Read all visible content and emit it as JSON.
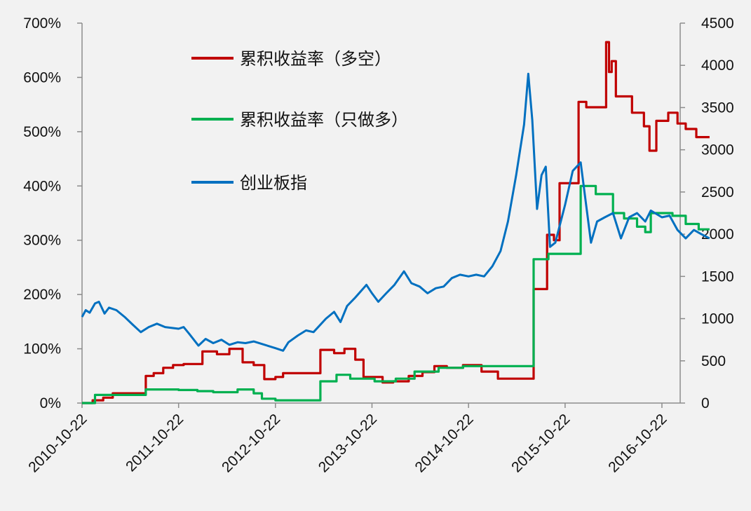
{
  "chart_data": {
    "type": "line",
    "title": "",
    "xlabel": "",
    "ylabel": "",
    "grid": false,
    "legend_placement": "top-left-inside",
    "x_ticks": [
      "2010-10-22",
      "2011-10-22",
      "2012-10-22",
      "2013-10-22",
      "2014-10-22",
      "2015-10-22",
      "2016-10-22"
    ],
    "x_range": [
      "2010-10-22",
      "2017-04-20"
    ],
    "y_left": {
      "ylim": [
        0,
        700
      ],
      "ticks": [
        0,
        100,
        200,
        300,
        400,
        500,
        600,
        700
      ],
      "tick_labels": [
        "0%",
        "100%",
        "200%",
        "300%",
        "400%",
        "500%",
        "600%",
        "700%"
      ]
    },
    "y_right": {
      "ylim": [
        0,
        4500
      ],
      "ticks": [
        0,
        500,
        1000,
        1500,
        2000,
        2500,
        3000,
        3500,
        4000,
        4500
      ],
      "tick_labels": [
        "0",
        "500",
        "1000",
        "1500",
        "2000",
        "2500",
        "3000",
        "3500",
        "4000",
        "4500"
      ]
    },
    "series": [
      {
        "name": "累积收益率（多空）",
        "axis": "left",
        "color": "#c00000",
        "step": true,
        "points": [
          [
            "2010-10-22",
            0
          ],
          [
            "2010-12-01",
            5
          ],
          [
            "2011-01-10",
            10
          ],
          [
            "2011-02-15",
            18
          ],
          [
            "2011-06-20",
            50
          ],
          [
            "2011-07-20",
            55
          ],
          [
            "2011-08-25",
            65
          ],
          [
            "2011-10-01",
            70
          ],
          [
            "2011-11-10",
            72
          ],
          [
            "2012-01-20",
            95
          ],
          [
            "2012-03-15",
            90
          ],
          [
            "2012-05-01",
            100
          ],
          [
            "2012-06-20",
            75
          ],
          [
            "2012-08-01",
            70
          ],
          [
            "2012-09-10",
            44
          ],
          [
            "2012-10-22",
            48
          ],
          [
            "2012-11-20",
            55
          ],
          [
            "2013-04-10",
            98
          ],
          [
            "2013-06-01",
            92
          ],
          [
            "2013-07-10",
            100
          ],
          [
            "2013-08-20",
            80
          ],
          [
            "2013-09-20",
            48
          ],
          [
            "2013-12-01",
            38
          ],
          [
            "2014-01-10",
            40
          ],
          [
            "2014-03-10",
            50
          ],
          [
            "2014-05-01",
            57
          ],
          [
            "2014-06-15",
            68
          ],
          [
            "2014-08-01",
            65
          ],
          [
            "2014-10-01",
            70
          ],
          [
            "2014-12-10",
            58
          ],
          [
            "2015-02-10",
            45
          ],
          [
            "2015-06-25",
            210
          ],
          [
            "2015-08-15",
            310
          ],
          [
            "2015-09-10",
            300
          ],
          [
            "2015-10-01",
            405
          ],
          [
            "2015-11-25",
            405
          ],
          [
            "2015-12-12",
            555
          ],
          [
            "2016-01-10",
            545
          ],
          [
            "2016-03-25",
            665
          ],
          [
            "2016-04-05",
            610
          ],
          [
            "2016-04-15",
            630
          ],
          [
            "2016-05-01",
            565
          ],
          [
            "2016-07-01",
            535
          ],
          [
            "2016-08-15",
            510
          ],
          [
            "2016-09-05",
            465
          ],
          [
            "2016-10-01",
            520
          ],
          [
            "2016-11-15",
            535
          ],
          [
            "2016-12-20",
            515
          ],
          [
            "2017-01-20",
            505
          ],
          [
            "2017-03-01",
            490
          ],
          [
            "2017-04-20",
            490
          ]
        ]
      },
      {
        "name": "累积收益率（只做多）",
        "axis": "left",
        "color": "#00b050",
        "step": true,
        "points": [
          [
            "2010-10-22",
            0
          ],
          [
            "2010-12-10",
            15
          ],
          [
            "2011-06-20",
            25
          ],
          [
            "2011-10-22",
            24
          ],
          [
            "2012-01-01",
            22
          ],
          [
            "2012-03-01",
            20
          ],
          [
            "2012-06-01",
            25
          ],
          [
            "2012-08-01",
            18
          ],
          [
            "2012-09-01",
            8
          ],
          [
            "2012-10-22",
            5
          ],
          [
            "2013-04-10",
            40
          ],
          [
            "2013-06-10",
            52
          ],
          [
            "2013-08-01",
            45
          ],
          [
            "2013-11-01",
            40
          ],
          [
            "2014-01-20",
            45
          ],
          [
            "2014-04-01",
            58
          ],
          [
            "2014-07-01",
            65
          ],
          [
            "2014-10-01",
            68
          ],
          [
            "2015-06-25",
            265
          ],
          [
            "2015-08-20",
            275
          ],
          [
            "2015-12-20",
            400
          ],
          [
            "2016-02-15",
            385
          ],
          [
            "2016-04-20",
            350
          ],
          [
            "2016-06-01",
            340
          ],
          [
            "2016-07-20",
            325
          ],
          [
            "2016-08-20",
            315
          ],
          [
            "2016-09-10",
            350
          ],
          [
            "2016-12-01",
            345
          ],
          [
            "2017-01-20",
            330
          ],
          [
            "2017-03-10",
            320
          ],
          [
            "2017-04-20",
            320
          ]
        ]
      },
      {
        "name": "创业板指",
        "axis": "right",
        "color": "#0070c0",
        "step": false,
        "points": [
          [
            "2010-10-22",
            1020
          ],
          [
            "2010-11-05",
            1100
          ],
          [
            "2010-11-20",
            1070
          ],
          [
            "2010-12-10",
            1180
          ],
          [
            "2010-12-25",
            1200
          ],
          [
            "2011-01-15",
            1060
          ],
          [
            "2011-02-01",
            1130
          ],
          [
            "2011-03-01",
            1100
          ],
          [
            "2011-04-01",
            1020
          ],
          [
            "2011-05-01",
            930
          ],
          [
            "2011-06-01",
            840
          ],
          [
            "2011-07-01",
            900
          ],
          [
            "2011-08-01",
            940
          ],
          [
            "2011-09-01",
            900
          ],
          [
            "2011-10-22",
            880
          ],
          [
            "2011-11-10",
            900
          ],
          [
            "2011-12-01",
            820
          ],
          [
            "2012-01-05",
            680
          ],
          [
            "2012-02-01",
            760
          ],
          [
            "2012-03-01",
            710
          ],
          [
            "2012-04-01",
            750
          ],
          [
            "2012-05-01",
            690
          ],
          [
            "2012-06-01",
            720
          ],
          [
            "2012-07-01",
            710
          ],
          [
            "2012-08-01",
            730
          ],
          [
            "2012-09-01",
            700
          ],
          [
            "2012-10-22",
            650
          ],
          [
            "2012-11-20",
            620
          ],
          [
            "2012-12-10",
            720
          ],
          [
            "2013-01-15",
            800
          ],
          [
            "2013-02-15",
            860
          ],
          [
            "2013-03-15",
            840
          ],
          [
            "2013-05-01",
            1000
          ],
          [
            "2013-06-01",
            1080
          ],
          [
            "2013-06-25",
            960
          ],
          [
            "2013-07-20",
            1150
          ],
          [
            "2013-08-20",
            1250
          ],
          [
            "2013-10-01",
            1400
          ],
          [
            "2013-10-22",
            1300
          ],
          [
            "2013-11-15",
            1200
          ],
          [
            "2013-12-15",
            1300
          ],
          [
            "2014-01-15",
            1400
          ],
          [
            "2014-02-20",
            1560
          ],
          [
            "2014-03-20",
            1420
          ],
          [
            "2014-04-20",
            1380
          ],
          [
            "2014-05-20",
            1300
          ],
          [
            "2014-06-20",
            1360
          ],
          [
            "2014-07-20",
            1380
          ],
          [
            "2014-08-20",
            1480
          ],
          [
            "2014-09-20",
            1520
          ],
          [
            "2014-10-22",
            1500
          ],
          [
            "2014-11-20",
            1520
          ],
          [
            "2014-12-20",
            1500
          ],
          [
            "2015-01-20",
            1620
          ],
          [
            "2015-02-20",
            1800
          ],
          [
            "2015-03-20",
            2150
          ],
          [
            "2015-04-20",
            2700
          ],
          [
            "2015-05-20",
            3300
          ],
          [
            "2015-06-05",
            3900
          ],
          [
            "2015-06-20",
            3350
          ],
          [
            "2015-07-08",
            2300
          ],
          [
            "2015-07-25",
            2700
          ],
          [
            "2015-08-10",
            2800
          ],
          [
            "2015-08-26",
            1850
          ],
          [
            "2015-09-15",
            1900
          ],
          [
            "2015-10-22",
            2350
          ],
          [
            "2015-11-20",
            2750
          ],
          [
            "2015-12-20",
            2850
          ],
          [
            "2016-01-28",
            1900
          ],
          [
            "2016-02-20",
            2150
          ],
          [
            "2016-03-20",
            2200
          ],
          [
            "2016-04-20",
            2250
          ],
          [
            "2016-05-20",
            1950
          ],
          [
            "2016-06-20",
            2200
          ],
          [
            "2016-07-20",
            2250
          ],
          [
            "2016-08-20",
            2150
          ],
          [
            "2016-09-10",
            2280
          ],
          [
            "2016-10-22",
            2200
          ],
          [
            "2016-11-20",
            2220
          ],
          [
            "2016-12-20",
            2050
          ],
          [
            "2017-01-20",
            1950
          ],
          [
            "2017-02-20",
            2050
          ],
          [
            "2017-03-20",
            2000
          ],
          [
            "2017-04-20",
            1950
          ]
        ]
      }
    ]
  }
}
